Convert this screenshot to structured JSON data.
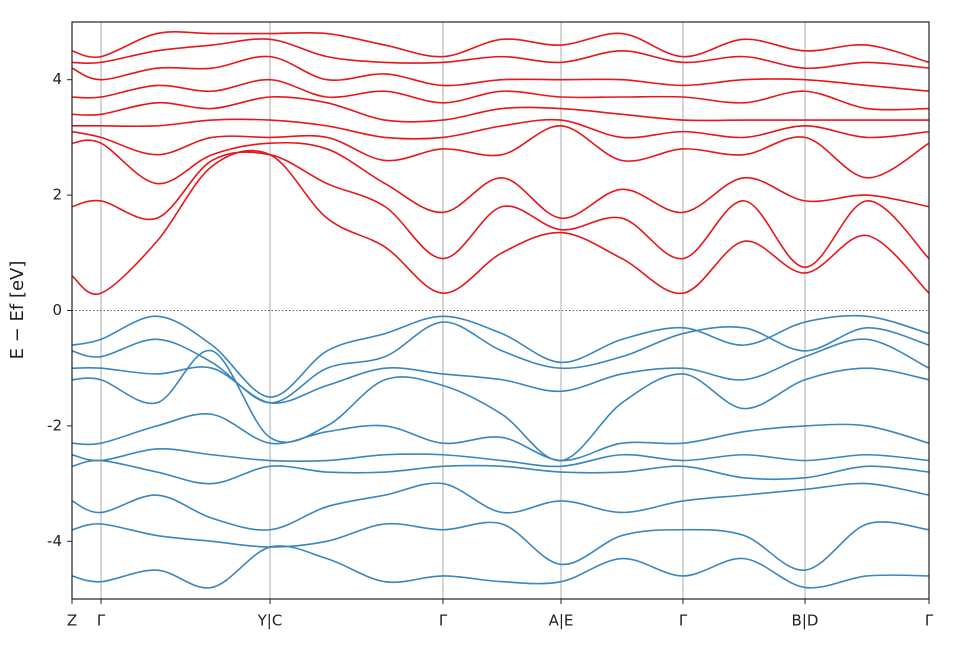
{
  "chart_data": {
    "type": "line",
    "ylabel": "E − Ef [eV]",
    "x": [
      0,
      0.29,
      0.85,
      1.4,
      1.98,
      2.55,
      3.13,
      3.71,
      4.3,
      4.89,
      5.5,
      6.11,
      6.72,
      7.33,
      7.95,
      8.57
    ],
    "xlim": [
      0,
      8.57
    ],
    "xticks": [
      {
        "value": 0,
        "label": "Z"
      },
      {
        "value": 0.29,
        "label": "Γ"
      },
      {
        "value": 1.98,
        "label": "Y|C"
      },
      {
        "value": 3.71,
        "label": "Γ"
      },
      {
        "value": 4.89,
        "label": "A|E"
      },
      {
        "value": 6.11,
        "label": "Γ"
      },
      {
        "value": 7.33,
        "label": "B|D"
      },
      {
        "value": 8.57,
        "label": "Γ"
      }
    ],
    "ylim": [
      -5,
      5
    ],
    "yticks": [
      -4,
      -2,
      0,
      2,
      4
    ],
    "hline": 0,
    "grid": true,
    "series": [
      {
        "color": "#e8161b",
        "values": [
          0.6,
          0.3,
          1.2,
          2.5,
          2.7,
          1.6,
          1.1,
          0.3,
          1.0,
          1.35,
          0.9,
          0.3,
          1.2,
          0.65,
          1.3,
          0.3
        ]
      },
      {
        "color": "#e8161b",
        "values": [
          1.8,
          1.9,
          1.6,
          2.6,
          2.7,
          2.2,
          1.8,
          0.9,
          1.8,
          1.4,
          1.6,
          0.9,
          1.9,
          0.75,
          1.9,
          0.9
        ]
      },
      {
        "color": "#e8161b",
        "values": [
          2.9,
          2.9,
          2.2,
          2.7,
          2.9,
          2.8,
          2.2,
          1.7,
          2.3,
          1.6,
          2.1,
          1.7,
          2.3,
          1.9,
          2.0,
          1.8
        ]
      },
      {
        "color": "#e8161b",
        "values": [
          3.1,
          3.0,
          2.7,
          3.0,
          3.0,
          3.0,
          2.6,
          2.8,
          2.7,
          3.2,
          2.6,
          2.8,
          2.7,
          3.0,
          2.3,
          2.9
        ]
      },
      {
        "color": "#e8161b",
        "values": [
          3.2,
          3.2,
          3.2,
          3.3,
          3.3,
          3.2,
          3.0,
          3.0,
          3.2,
          3.3,
          3.0,
          3.1,
          3.0,
          3.2,
          3.0,
          3.1
        ]
      },
      {
        "color": "#e8161b",
        "values": [
          3.4,
          3.4,
          3.6,
          3.5,
          3.7,
          3.6,
          3.3,
          3.3,
          3.5,
          3.5,
          3.4,
          3.3,
          3.3,
          3.3,
          3.3,
          3.3
        ]
      },
      {
        "color": "#e8161b",
        "values": [
          3.7,
          3.7,
          3.9,
          3.8,
          4.0,
          3.7,
          3.8,
          3.6,
          3.8,
          3.7,
          3.7,
          3.7,
          3.6,
          3.8,
          3.5,
          3.5
        ]
      },
      {
        "color": "#e8161b",
        "values": [
          4.2,
          4.0,
          4.2,
          4.2,
          4.4,
          4.0,
          4.1,
          3.9,
          4.0,
          4.0,
          4.0,
          3.9,
          4.0,
          4.0,
          3.9,
          3.8
        ]
      },
      {
        "color": "#e8161b",
        "values": [
          4.3,
          4.3,
          4.5,
          4.6,
          4.7,
          4.4,
          4.3,
          4.3,
          4.4,
          4.3,
          4.5,
          4.3,
          4.4,
          4.2,
          4.3,
          4.2
        ]
      },
      {
        "color": "#e8161b",
        "values": [
          4.5,
          4.4,
          4.8,
          4.8,
          4.8,
          4.8,
          4.6,
          4.4,
          4.7,
          4.6,
          4.8,
          4.4,
          4.7,
          4.5,
          4.6,
          4.3
        ]
      },
      {
        "color": "#3a86bd",
        "values": [
          -0.6,
          -0.5,
          -0.1,
          -0.6,
          -1.5,
          -0.7,
          -0.4,
          -0.1,
          -0.4,
          -0.9,
          -0.5,
          -0.3,
          -0.6,
          -0.2,
          -0.1,
          -0.4
        ]
      },
      {
        "color": "#3a86bd",
        "values": [
          -0.7,
          -0.8,
          -0.5,
          -0.9,
          -1.6,
          -1.0,
          -0.8,
          -0.2,
          -0.7,
          -1.0,
          -0.8,
          -0.4,
          -0.3,
          -0.7,
          -0.3,
          -0.6
        ]
      },
      {
        "color": "#3a86bd",
        "values": [
          -1.0,
          -1.0,
          -1.1,
          -1.0,
          -1.6,
          -1.3,
          -1.0,
          -1.1,
          -1.2,
          -1.4,
          -1.1,
          -1.0,
          -1.2,
          -0.8,
          -0.5,
          -1.0
        ]
      },
      {
        "color": "#3a86bd",
        "values": [
          -1.2,
          -1.2,
          -1.6,
          -0.7,
          -2.2,
          -2.0,
          -1.2,
          -1.3,
          -1.8,
          -2.6,
          -1.6,
          -1.1,
          -1.7,
          -1.2,
          -1.0,
          -1.2
        ]
      },
      {
        "color": "#3a86bd",
        "values": [
          -2.3,
          -2.3,
          -2.0,
          -1.8,
          -2.3,
          -2.1,
          -2.0,
          -2.3,
          -2.2,
          -2.6,
          -2.3,
          -2.3,
          -2.1,
          -2.0,
          -2.0,
          -2.3
        ]
      },
      {
        "color": "#3a86bd",
        "values": [
          -2.5,
          -2.6,
          -2.4,
          -2.5,
          -2.6,
          -2.6,
          -2.5,
          -2.5,
          -2.6,
          -2.7,
          -2.5,
          -2.6,
          -2.5,
          -2.6,
          -2.5,
          -2.6
        ]
      },
      {
        "color": "#3a86bd",
        "values": [
          -2.7,
          -2.6,
          -2.8,
          -3.0,
          -2.7,
          -2.8,
          -2.8,
          -2.7,
          -2.7,
          -2.8,
          -2.8,
          -2.7,
          -2.9,
          -2.9,
          -2.7,
          -2.8
        ]
      },
      {
        "color": "#3a86bd",
        "values": [
          -3.3,
          -3.5,
          -3.2,
          -3.6,
          -3.8,
          -3.4,
          -3.2,
          -3.0,
          -3.5,
          -3.3,
          -3.5,
          -3.3,
          -3.2,
          -3.1,
          -3.0,
          -3.2
        ]
      },
      {
        "color": "#3a86bd",
        "values": [
          -3.8,
          -3.7,
          -3.9,
          -4.0,
          -4.1,
          -4.0,
          -3.7,
          -3.8,
          -3.7,
          -4.4,
          -3.9,
          -3.8,
          -3.9,
          -4.5,
          -3.7,
          -3.8
        ]
      },
      {
        "color": "#3a86bd",
        "values": [
          -4.6,
          -4.7,
          -4.5,
          -4.8,
          -4.1,
          -4.3,
          -4.7,
          -4.6,
          -4.7,
          -4.7,
          -4.3,
          -4.6,
          -4.3,
          -4.8,
          -4.6,
          -4.6
        ]
      }
    ]
  }
}
